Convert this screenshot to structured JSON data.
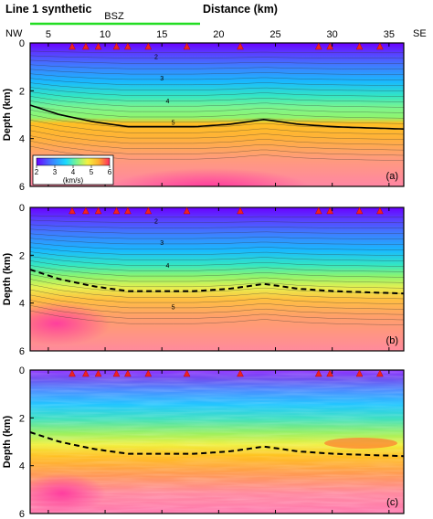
{
  "figure": {
    "title": "Line 1 synthetic",
    "x_axis_title": "Distance (km)",
    "bsz_label": "BSZ",
    "nw_label": "NW",
    "se_label": "SE",
    "colors": {
      "bsz": "#22dd22",
      "receiver": "#ee2222"
    }
  },
  "chart_data": [
    {
      "type": "heatmap",
      "panel_label": "(a)",
      "xlabel": "Distance (km)",
      "ylabel": "Depth (km)",
      "xlim": [
        3.4,
        36.3
      ],
      "ylim": [
        6,
        0
      ],
      "x_ticks": [
        5,
        10,
        15,
        20,
        25,
        30,
        35
      ],
      "y_ticks": [
        0,
        2,
        4,
        6
      ],
      "colorbar": {
        "title": "(km/s)",
        "min": 2,
        "max": 6,
        "ticks": [
          2,
          3,
          4,
          5,
          6
        ]
      },
      "contour_labels": [
        "2",
        "3",
        "4",
        "5"
      ],
      "receivers_km": [
        7.1,
        8.3,
        9.4,
        11.0,
        12.0,
        13.8,
        17.2,
        21.9,
        28.8,
        29.8,
        32.4,
        34.2
      ],
      "reference_boundary": {
        "x": [
          3.4,
          6,
          9,
          12,
          15,
          18,
          21,
          24,
          27,
          30,
          33,
          36.3
        ],
        "depth": [
          2.6,
          3.0,
          3.3,
          3.5,
          3.5,
          3.5,
          3.4,
          3.2,
          3.4,
          3.5,
          3.55,
          3.6
        ]
      }
    },
    {
      "type": "heatmap",
      "panel_label": "(b)",
      "xlabel": "Distance (km)",
      "ylabel": "Depth (km)",
      "xlim": [
        3.4,
        36.3
      ],
      "ylim": [
        6,
        0
      ],
      "x_ticks": [
        5,
        10,
        15,
        20,
        25,
        30,
        35
      ],
      "y_ticks": [
        0,
        2,
        4,
        6
      ],
      "contour_labels": [
        "2",
        "3",
        "4",
        "5"
      ],
      "receivers_km": [
        7.1,
        8.3,
        9.4,
        11.0,
        12.0,
        13.8,
        17.2,
        21.9,
        28.8,
        29.8,
        32.4,
        34.2
      ],
      "reference_boundary": {
        "x": [
          3.4,
          6,
          9,
          12,
          15,
          18,
          21,
          24,
          27,
          30,
          33,
          36.3
        ],
        "depth": [
          2.6,
          3.0,
          3.3,
          3.5,
          3.5,
          3.5,
          3.4,
          3.2,
          3.4,
          3.5,
          3.55,
          3.6
        ]
      }
    },
    {
      "type": "heatmap",
      "panel_label": "(c)",
      "xlabel": "Distance (km)",
      "ylabel": "Depth (km)",
      "xlim": [
        3.4,
        36.3
      ],
      "ylim": [
        6,
        0
      ],
      "x_ticks": [
        5,
        10,
        15,
        20,
        25,
        30,
        35
      ],
      "y_ticks": [
        0,
        2,
        4,
        6
      ],
      "receivers_km": [
        7.1,
        8.3,
        9.4,
        11.0,
        12.0,
        13.8,
        17.2,
        21.9,
        28.8,
        29.8,
        32.4,
        34.2
      ],
      "reference_boundary": {
        "x": [
          3.4,
          6,
          9,
          12,
          15,
          18,
          21,
          24,
          27,
          30,
          33,
          36.3
        ],
        "depth": [
          2.6,
          3.0,
          3.3,
          3.5,
          3.5,
          3.5,
          3.4,
          3.2,
          3.4,
          3.5,
          3.55,
          3.6
        ]
      }
    }
  ]
}
